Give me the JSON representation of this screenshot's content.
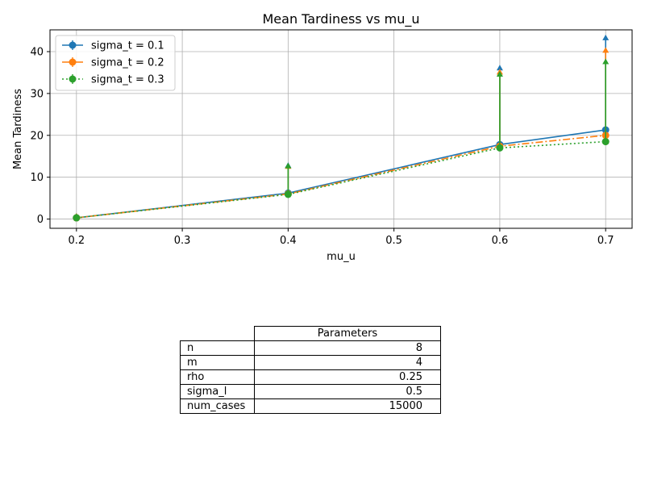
{
  "chart_data": {
    "type": "line",
    "title": "Mean Tardiness vs mu_u",
    "xlabel": "mu_u",
    "ylabel": "Mean Tardiness",
    "xlim": [
      0.175,
      0.725
    ],
    "ylim": [
      -2.2,
      45.2
    ],
    "x_ticks": [
      0.2,
      0.3,
      0.4,
      0.5,
      0.6,
      0.7
    ],
    "x_tick_labels": [
      "0.2",
      "0.3",
      "0.4",
      "0.5",
      "0.6",
      "0.7"
    ],
    "y_ticks": [
      0,
      10,
      20,
      30,
      40
    ],
    "y_tick_labels": [
      "0",
      "10",
      "20",
      "30",
      "40"
    ],
    "grid": true,
    "legend_position": "top-left",
    "x": [
      0.2,
      0.4,
      0.6,
      0.7
    ],
    "series": [
      {
        "name": "sigma_t = 0.1",
        "color": "#1f77b4",
        "dash": "solid",
        "values": [
          0.3,
          6.2,
          17.8,
          21.3
        ],
        "upper": [
          0.7,
          12.8,
          36.1,
          43.3
        ]
      },
      {
        "name": "sigma_t = 0.2",
        "color": "#ff7f0e",
        "dash": "dashdot",
        "values": [
          0.3,
          6.0,
          17.4,
          20.0
        ],
        "upper": [
          0.7,
          12.6,
          35.1,
          40.3
        ]
      },
      {
        "name": "sigma_t = 0.3",
        "color": "#2ca02c",
        "dash": "dotted",
        "values": [
          0.3,
          5.9,
          17.0,
          18.5
        ],
        "upper": [
          0.6,
          12.7,
          34.6,
          37.6
        ]
      }
    ]
  },
  "table": {
    "header": "Parameters",
    "rows": [
      {
        "key": "n",
        "value": "8"
      },
      {
        "key": "m",
        "value": "4"
      },
      {
        "key": "rho",
        "value": "0.25"
      },
      {
        "key": "sigma_l",
        "value": "0.5"
      },
      {
        "key": "num_cases",
        "value": "15000"
      }
    ]
  }
}
